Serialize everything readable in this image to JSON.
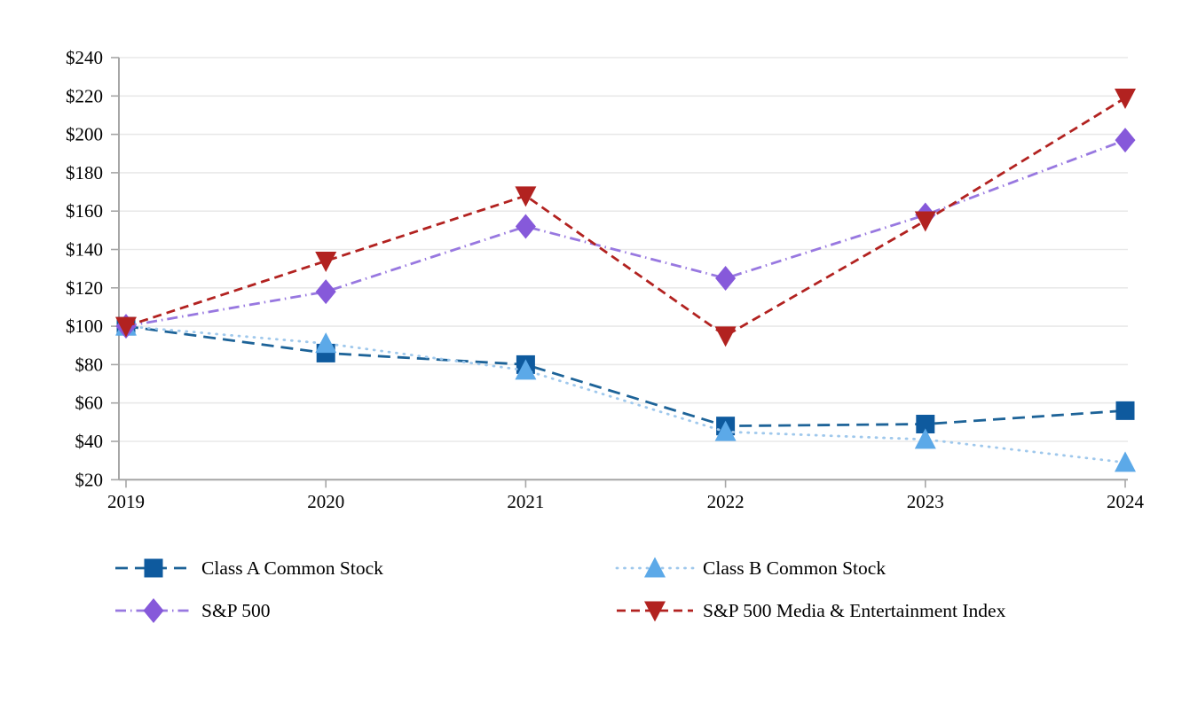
{
  "chart_data": {
    "type": "line",
    "title": "",
    "x_categories": [
      "2019",
      "2020",
      "2021",
      "2022",
      "2023",
      "2024"
    ],
    "y_axis": {
      "min": 20,
      "max": 240,
      "step": 20,
      "tick_prefix": "$",
      "tick_labels_top_to_bottom": [
        "$240",
        "$220",
        "$200",
        "$180",
        "$160",
        "$140",
        "$120",
        "$100",
        "$80",
        "$60",
        "$40",
        "$20"
      ]
    },
    "grid": true,
    "legend_position": "bottom",
    "series": [
      {
        "name": "Class A Common Stock",
        "marker": "square",
        "marker_color": "#0E5A9E",
        "line_color": "#1D6398",
        "dash": "14 8",
        "linecap": "butt",
        "values": [
          100,
          86,
          80,
          48,
          49,
          56
        ]
      },
      {
        "name": "Class B Common Stock",
        "marker": "triangle-up",
        "marker_color": "#5CA9E8",
        "line_color": "#9FC8EC",
        "dash": "1 7.5",
        "linecap": "round",
        "values": [
          100,
          91,
          77,
          45,
          41,
          29
        ]
      },
      {
        "name": "S&P 500",
        "marker": "diamond",
        "marker_color": "#8659DA",
        "line_color": "#9878E0",
        "dash": "12 5 1.5 5",
        "linecap": "butt",
        "values": [
          100,
          118,
          152,
          125,
          158,
          197
        ]
      },
      {
        "name": "S&P 500 Media & Entertainment Index",
        "marker": "triangle-down",
        "marker_color": "#B22220",
        "line_color": "#B22220",
        "dash": "10 6",
        "linecap": "butt",
        "values": [
          100,
          134,
          168,
          95,
          155,
          219
        ]
      }
    ],
    "colors": {
      "axis": "#A6A6A6",
      "gridline": "#E9E9E9",
      "text": "#000000"
    }
  }
}
